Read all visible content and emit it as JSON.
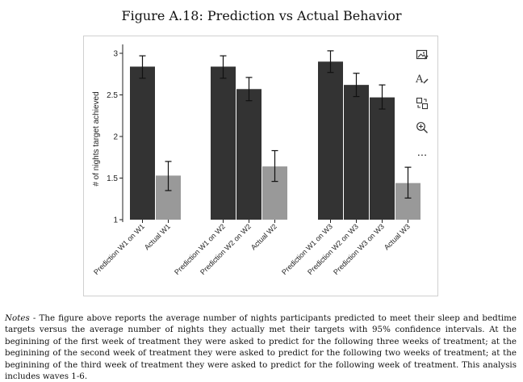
{
  "title": "Figure A.18: Prediction vs Actual Behavior",
  "notes": {
    "label": "Notes",
    "text": " -  The figure above reports the average number of nights participants predicted to meet their sleep and bedtime targets versus the average number of nights they actually met their targets with 95% confidence intervals. At the beginining of the first week of treatment they were asked to predict for the following three weeks of treatment; at the beginining of the second week of treatment they were asked to predict for the following two weeks of treatment; at the beginining of the third week of treatment they were asked to predict for the following week of treatment. This analysis includes waves 1-6."
  },
  "toolbar": {
    "icons": [
      "image-edit-icon",
      "text-format-icon",
      "copy-transform-icon",
      "zoom-in-icon",
      "more-icon"
    ],
    "more_label": "..."
  },
  "chart_data": {
    "type": "bar",
    "ylabel": "# of nights target achieved",
    "ylim": [
      1,
      3.1
    ],
    "yticks": [
      1,
      1.5,
      2,
      2.5,
      3
    ],
    "ytick_labels": [
      "1",
      "1.5",
      "2",
      "2.5",
      "3"
    ],
    "grid": false,
    "colors": {
      "prediction": "#333333",
      "actual": "#999999"
    },
    "groups": [
      {
        "bars": [
          {
            "label": "Prediction W1 on W1",
            "kind": "prediction",
            "value": 2.84,
            "ci": [
              2.7,
              2.97
            ]
          },
          {
            "label": "Actual W1",
            "kind": "actual",
            "value": 1.53,
            "ci": [
              1.35,
              1.7
            ]
          }
        ]
      },
      {
        "bars": [
          {
            "label": "Prediction W1 on W2",
            "kind": "prediction",
            "value": 2.84,
            "ci": [
              2.7,
              2.97
            ]
          },
          {
            "label": "Prediction W2 on W2",
            "kind": "prediction",
            "value": 2.57,
            "ci": [
              2.43,
              2.71
            ]
          },
          {
            "label": "Actual W2",
            "kind": "actual",
            "value": 1.64,
            "ci": [
              1.46,
              1.83
            ]
          }
        ]
      },
      {
        "bars": [
          {
            "label": "Prediction W1 on W3",
            "kind": "prediction",
            "value": 2.9,
            "ci": [
              2.77,
              3.03
            ]
          },
          {
            "label": "Prediction W2 on W3",
            "kind": "prediction",
            "value": 2.62,
            "ci": [
              2.48,
              2.76
            ]
          },
          {
            "label": "Prediction W3 on W3",
            "kind": "prediction",
            "value": 2.47,
            "ci": [
              2.33,
              2.62
            ]
          },
          {
            "label": "Actual W3",
            "kind": "actual",
            "value": 1.44,
            "ci": [
              1.26,
              1.63
            ]
          }
        ]
      }
    ]
  }
}
